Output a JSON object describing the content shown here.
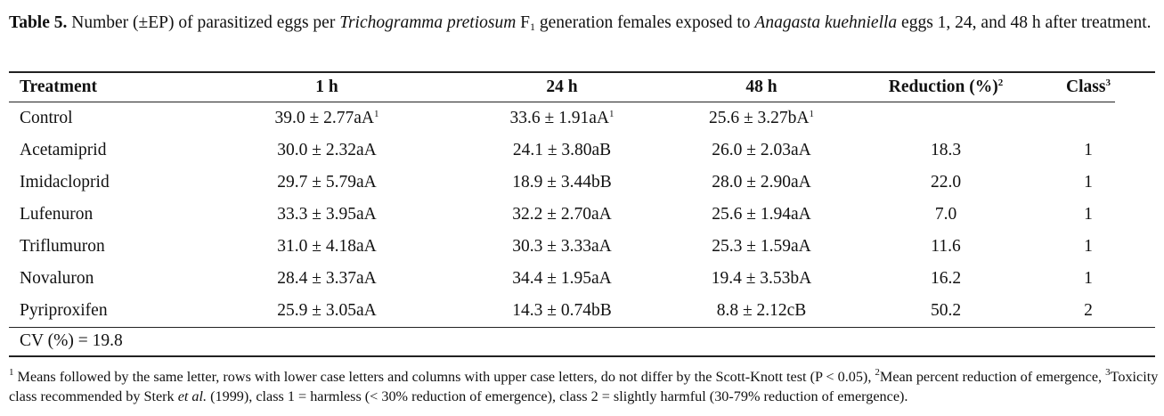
{
  "title": [
    "Table 5.",
    " Number (±EP) of parasitized eggs per ",
    "Trichogramma pretiosum",
    " F",
    "1",
    " generation females exposed to ",
    "Anagasta kuehniella",
    " eggs 1, 24, and 48 h after treatment."
  ],
  "table": {
    "header": [
      "Treatment",
      "1 h",
      "24 h",
      "48 h",
      {
        "text": "Reduction (%)",
        "sup": "2"
      },
      {
        "text": "Class",
        "sup": "3"
      }
    ],
    "rows": [
      [
        "Control",
        {
          "text": "39.0 ± 2.77aA",
          "sup": "1"
        },
        {
          "text": "33.6 ± 1.91aA",
          "sup": "1"
        },
        {
          "text": "25.6 ± 3.27bA",
          "sup": "1"
        },
        null,
        null
      ],
      [
        "Acetamiprid",
        "30.0 ± 2.32aA",
        "24.1 ± 3.80aB",
        "26.0 ± 2.03aA",
        "18.3",
        "1"
      ],
      [
        "Imidacloprid",
        "29.7 ± 5.79aA",
        "18.9 ± 3.44bB",
        "28.0 ± 2.90aA",
        "22.0",
        "1"
      ],
      [
        "Lufenuron",
        "33.3 ± 3.95aA",
        "32.2 ± 2.70aA",
        "25.6 ± 1.94aA",
        "7.0",
        "1"
      ],
      [
        "Triflumuron",
        "31.0 ± 4.18aA",
        "30.3 ± 3.33aA",
        "25.3 ± 1.59aA",
        "11.6",
        "1"
      ],
      [
        "Novaluron",
        "28.4 ± 3.37aA",
        "34.4 ± 1.95aA",
        "19.4 ± 3.53bA",
        "16.2",
        "1"
      ],
      [
        "Pyriproxifen",
        "25.9 ± 3.05aA",
        "14.3 ± 0.74bB",
        "8.8 ± 2.12cB",
        "50.2",
        "2"
      ]
    ],
    "footer": "CV (%) = 19.8"
  },
  "footnote": [
    "1",
    " Means followed by the same letter, rows with lower case letters and columns with upper case letters, do not differ by the Scott-Knott test (P < 0.05), ",
    "2",
    "Mean percent reduction of emergence, ",
    "3",
    "Toxicity class recommended by Sterk ",
    "et al.",
    " (1999), class 1 = harmless (< 30% reduction of emergence), class 2 = slightly harmful (30-79% reduction of emergence)."
  ]
}
